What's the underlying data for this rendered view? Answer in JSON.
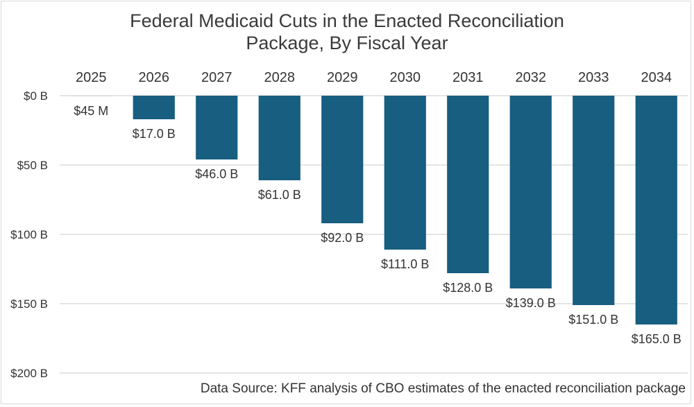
{
  "chart_data": {
    "type": "bar",
    "title": "Federal Medicaid Cuts in the Enacted Reconciliation Package, By Fiscal Year",
    "title_lines": [
      "Federal Medicaid Cuts in the Enacted Reconciliation",
      "Package, By Fiscal Year"
    ],
    "categories": [
      "2025",
      "2026",
      "2027",
      "2028",
      "2029",
      "2030",
      "2031",
      "2032",
      "2033",
      "2034"
    ],
    "values": [
      0.045,
      17.0,
      46.0,
      61.0,
      92.0,
      111.0,
      128.0,
      139.0,
      151.0,
      165.0
    ],
    "data_labels": [
      "$45 M",
      "$17.0 B",
      "$46.0 B",
      "$61.0 B",
      "$92.0 B",
      "$111.0 B",
      "$128.0 B",
      "$139.0 B",
      "$151.0 B",
      "$165.0 B"
    ],
    "xlabel": "",
    "ylabel": "",
    "unit": "billions of dollars",
    "ylim": [
      0,
      200
    ],
    "y_axis_inverted": true,
    "yticks": [
      0,
      50,
      100,
      150,
      200
    ],
    "ytick_labels": [
      "$0 B",
      "$50 B",
      "$100 B",
      "$150 B",
      "$200 B"
    ],
    "x_axis_position": "top",
    "grid": true,
    "legend": "none",
    "bar_color": "#175e80",
    "source": "Data Source: KFF analysis of CBO estimates of the enacted reconciliation package"
  }
}
